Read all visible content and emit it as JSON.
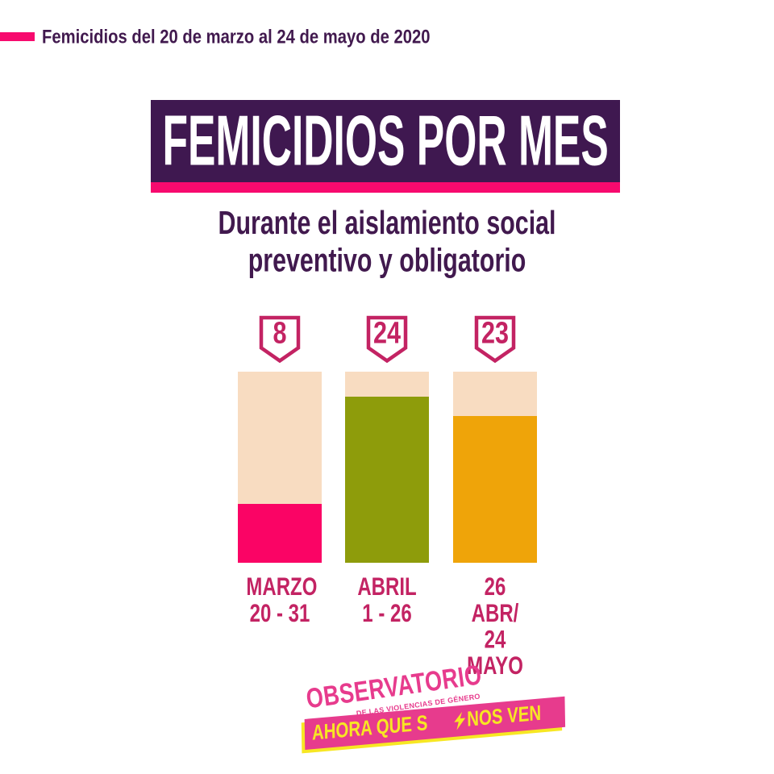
{
  "palette": {
    "bg": "#ffffff",
    "magenta": "#f70a6e",
    "purple": "#3f1850",
    "text_purple": "#41194e",
    "peach": "#f8dcc1",
    "crimson": "#c32363",
    "logo_pink": "#e73b8d",
    "logo_yellow": "#f7e723"
  },
  "header": {
    "caption": "Femicidios del 20 de marzo al 24 de mayo de 2020"
  },
  "title": {
    "text": "FEMICIDIOS POR MES"
  },
  "subtitle": {
    "text": "Durante el aislamiento social\npreventivo y obligatorio"
  },
  "chart_data": {
    "type": "bar",
    "title": "FEMICIDIOS POR MES",
    "subtitle": "Durante el aislamiento social preventivo y obligatorio",
    "categories": [
      "MARZO\n20 - 31",
      "ABRIL\n1 - 26",
      "26 ABR/\n24 MAYO"
    ],
    "values": [
      8,
      24,
      23
    ],
    "bars": [
      {
        "color": "#fa0465",
        "fill_pct": 31
      },
      {
        "color": "#8e9c0b",
        "fill_pct": 87
      },
      {
        "color": "#efa409",
        "fill_pct": 77
      }
    ],
    "track_color": "#f8dcc1",
    "value_badge_color": "#c32363",
    "xlabel": "",
    "ylabel": "",
    "grid": false,
    "legend": "none",
    "axes_hidden": true
  },
  "logo": {
    "name": "OBSERVATORIO",
    "subname": "DE LAS VIOLENCIAS DE GÉNERO",
    "tagline_before_bolt": "AHORA QUE S",
    "tagline_after_bolt": "NOS VEN",
    "tagline_full": "AHORA QUE SÍ NOS VEN"
  }
}
